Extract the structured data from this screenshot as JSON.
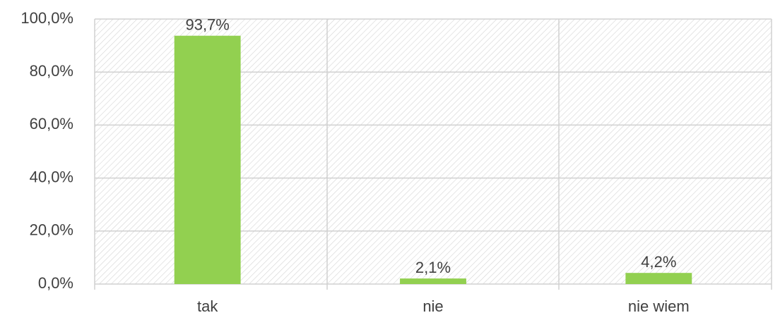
{
  "chart_data": {
    "type": "bar",
    "categories": [
      "tak",
      "nie",
      "nie wiem"
    ],
    "values": [
      93.7,
      2.1,
      4.2
    ],
    "value_labels": [
      "93,7%",
      "2,1%",
      "4,2%"
    ],
    "color": "#92d050",
    "ylim": [
      0,
      100
    ],
    "yticks": [
      {
        "value": 0,
        "label": "0,0%"
      },
      {
        "value": 20,
        "label": "20,0%"
      },
      {
        "value": 40,
        "label": "40,0%"
      },
      {
        "value": 60,
        "label": "60,0%"
      },
      {
        "value": 80,
        "label": "80,0%"
      },
      {
        "value": 100,
        "label": "100,0%"
      }
    ],
    "grid": true
  }
}
